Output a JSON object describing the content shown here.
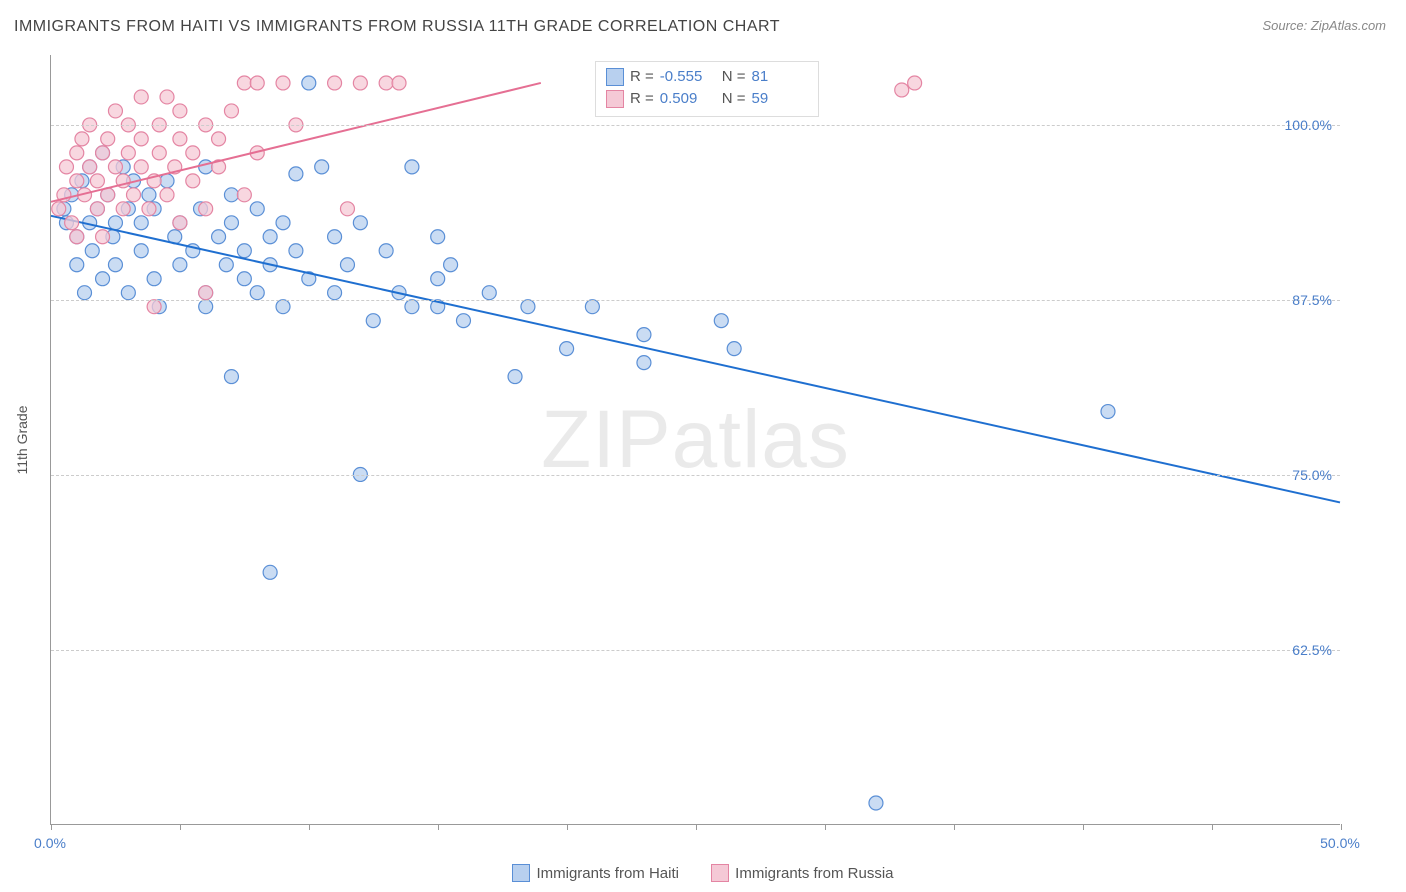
{
  "title": "IMMIGRANTS FROM HAITI VS IMMIGRANTS FROM RUSSIA 11TH GRADE CORRELATION CHART",
  "source": "Source: ZipAtlas.com",
  "yaxis_label": "11th Grade",
  "watermark": "ZIPatlas",
  "chart": {
    "type": "scatter",
    "xlim": [
      0,
      50
    ],
    "ylim": [
      50,
      105
    ],
    "x_ticks": [
      0,
      5,
      10,
      15,
      20,
      25,
      30,
      35,
      40,
      45,
      50
    ],
    "x_tick_labels": {
      "0": "0.0%",
      "50": "50.0%"
    },
    "y_gridlines": [
      62.5,
      75.0,
      87.5,
      100.0
    ],
    "y_tick_labels": [
      "62.5%",
      "75.0%",
      "87.5%",
      "100.0%"
    ],
    "background_color": "#ffffff",
    "grid_color": "#cccccc",
    "axis_color": "#999999",
    "marker_radius": 7,
    "marker_stroke_width": 1.2,
    "line_width": 2,
    "series": [
      {
        "name": "Immigrants from Haiti",
        "color_fill": "#b8d0ef",
        "color_stroke": "#5a8fd6",
        "line_color": "#1f6fd0",
        "R": "-0.555",
        "N": "81",
        "trend": {
          "x1": 0,
          "y1": 93.5,
          "x2": 50,
          "y2": 73.0
        },
        "points": [
          [
            0.5,
            94
          ],
          [
            0.6,
            93
          ],
          [
            0.8,
            95
          ],
          [
            1.0,
            92
          ],
          [
            1.0,
            90
          ],
          [
            1.2,
            96
          ],
          [
            1.3,
            88
          ],
          [
            1.5,
            97
          ],
          [
            1.5,
            93
          ],
          [
            1.6,
            91
          ],
          [
            1.8,
            94
          ],
          [
            2.0,
            98
          ],
          [
            2.0,
            89
          ],
          [
            2.2,
            95
          ],
          [
            2.4,
            92
          ],
          [
            2.5,
            93
          ],
          [
            2.5,
            90
          ],
          [
            2.8,
            97
          ],
          [
            3.0,
            94
          ],
          [
            3.0,
            88
          ],
          [
            3.2,
            96
          ],
          [
            3.5,
            91
          ],
          [
            3.5,
            93
          ],
          [
            3.8,
            95
          ],
          [
            4.0,
            89
          ],
          [
            4.0,
            94
          ],
          [
            4.2,
            87
          ],
          [
            4.5,
            96
          ],
          [
            4.8,
            92
          ],
          [
            5.0,
            90
          ],
          [
            5.0,
            93
          ],
          [
            5.5,
            91
          ],
          [
            5.8,
            94
          ],
          [
            6.0,
            88
          ],
          [
            6.0,
            97
          ],
          [
            6.0,
            87
          ],
          [
            6.5,
            92
          ],
          [
            6.8,
            90
          ],
          [
            7.0,
            95
          ],
          [
            7.0,
            93
          ],
          [
            7.0,
            82
          ],
          [
            7.5,
            89
          ],
          [
            7.5,
            91
          ],
          [
            8.0,
            94
          ],
          [
            8.0,
            88
          ],
          [
            8.5,
            92
          ],
          [
            8.5,
            90
          ],
          [
            9.0,
            93
          ],
          [
            9.0,
            87
          ],
          [
            9.5,
            96.5
          ],
          [
            9.5,
            91
          ],
          [
            10.0,
            103
          ],
          [
            10.0,
            89
          ],
          [
            10.5,
            97
          ],
          [
            11.0,
            92
          ],
          [
            11.0,
            88
          ],
          [
            11.5,
            90
          ],
          [
            12.0,
            93
          ],
          [
            12.0,
            75
          ],
          [
            12.5,
            86
          ],
          [
            13.0,
            91
          ],
          [
            13.5,
            88
          ],
          [
            14.0,
            97
          ],
          [
            14.0,
            87
          ],
          [
            15.0,
            92
          ],
          [
            15.0,
            89
          ],
          [
            15.0,
            87
          ],
          [
            15.5,
            90
          ],
          [
            16.0,
            86
          ],
          [
            17.0,
            88
          ],
          [
            18.0,
            82
          ],
          [
            18.5,
            87
          ],
          [
            20.0,
            84
          ],
          [
            21.0,
            87
          ],
          [
            23.0,
            83
          ],
          [
            23.0,
            85
          ],
          [
            26.0,
            86
          ],
          [
            26.5,
            84
          ],
          [
            32.0,
            51.5
          ],
          [
            8.5,
            68
          ],
          [
            41.0,
            79.5
          ]
        ]
      },
      {
        "name": "Immigrants from Russia",
        "color_fill": "#f5c9d6",
        "color_stroke": "#e485a3",
        "line_color": "#e56f93",
        "R": "0.509",
        "N": "59",
        "trend": {
          "x1": 0,
          "y1": 94.5,
          "x2": 19,
          "y2": 103.0
        },
        "points": [
          [
            0.3,
            94
          ],
          [
            0.5,
            95
          ],
          [
            0.6,
            97
          ],
          [
            0.8,
            93
          ],
          [
            1.0,
            96
          ],
          [
            1.0,
            98
          ],
          [
            1.0,
            92
          ],
          [
            1.2,
            99
          ],
          [
            1.3,
            95
          ],
          [
            1.5,
            97
          ],
          [
            1.5,
            100
          ],
          [
            1.8,
            94
          ],
          [
            1.8,
            96
          ],
          [
            2.0,
            98
          ],
          [
            2.0,
            92
          ],
          [
            2.2,
            95
          ],
          [
            2.2,
            99
          ],
          [
            2.5,
            97
          ],
          [
            2.5,
            101
          ],
          [
            2.8,
            94
          ],
          [
            2.8,
            96
          ],
          [
            3.0,
            98
          ],
          [
            3.0,
            100
          ],
          [
            3.2,
            95
          ],
          [
            3.5,
            97
          ],
          [
            3.5,
            99
          ],
          [
            3.5,
            102
          ],
          [
            3.8,
            94
          ],
          [
            4.0,
            96
          ],
          [
            4.0,
            87
          ],
          [
            4.2,
            98
          ],
          [
            4.2,
            100
          ],
          [
            4.5,
            95
          ],
          [
            4.5,
            102
          ],
          [
            4.8,
            97
          ],
          [
            5.0,
            99
          ],
          [
            5.0,
            101
          ],
          [
            5.0,
            93
          ],
          [
            5.5,
            96
          ],
          [
            5.5,
            98
          ],
          [
            6.0,
            100
          ],
          [
            6.0,
            88
          ],
          [
            6.0,
            94
          ],
          [
            6.5,
            97
          ],
          [
            6.5,
            99
          ],
          [
            7.0,
            101
          ],
          [
            7.5,
            103
          ],
          [
            7.5,
            95
          ],
          [
            8.0,
            98
          ],
          [
            8.0,
            103
          ],
          [
            9.0,
            103
          ],
          [
            9.5,
            100
          ],
          [
            11.0,
            103
          ],
          [
            11.5,
            94
          ],
          [
            12.0,
            103
          ],
          [
            13.0,
            103
          ],
          [
            13.5,
            103
          ],
          [
            33.0,
            102.5
          ],
          [
            33.5,
            103
          ]
        ]
      }
    ]
  },
  "stats_box": {
    "rows": [
      {
        "swatch_fill": "#b8d0ef",
        "swatch_stroke": "#5a8fd6",
        "R": "-0.555",
        "N": "81"
      },
      {
        "swatch_fill": "#f5c9d6",
        "swatch_stroke": "#e485a3",
        "R": "0.509",
        "N": "59"
      }
    ],
    "label_R": "R =",
    "label_N": "N ="
  },
  "legend": {
    "items": [
      {
        "swatch_fill": "#b8d0ef",
        "swatch_stroke": "#5a8fd6",
        "label": "Immigrants from Haiti"
      },
      {
        "swatch_fill": "#f5c9d6",
        "swatch_stroke": "#e485a3",
        "label": "Immigrants from Russia"
      }
    ]
  }
}
